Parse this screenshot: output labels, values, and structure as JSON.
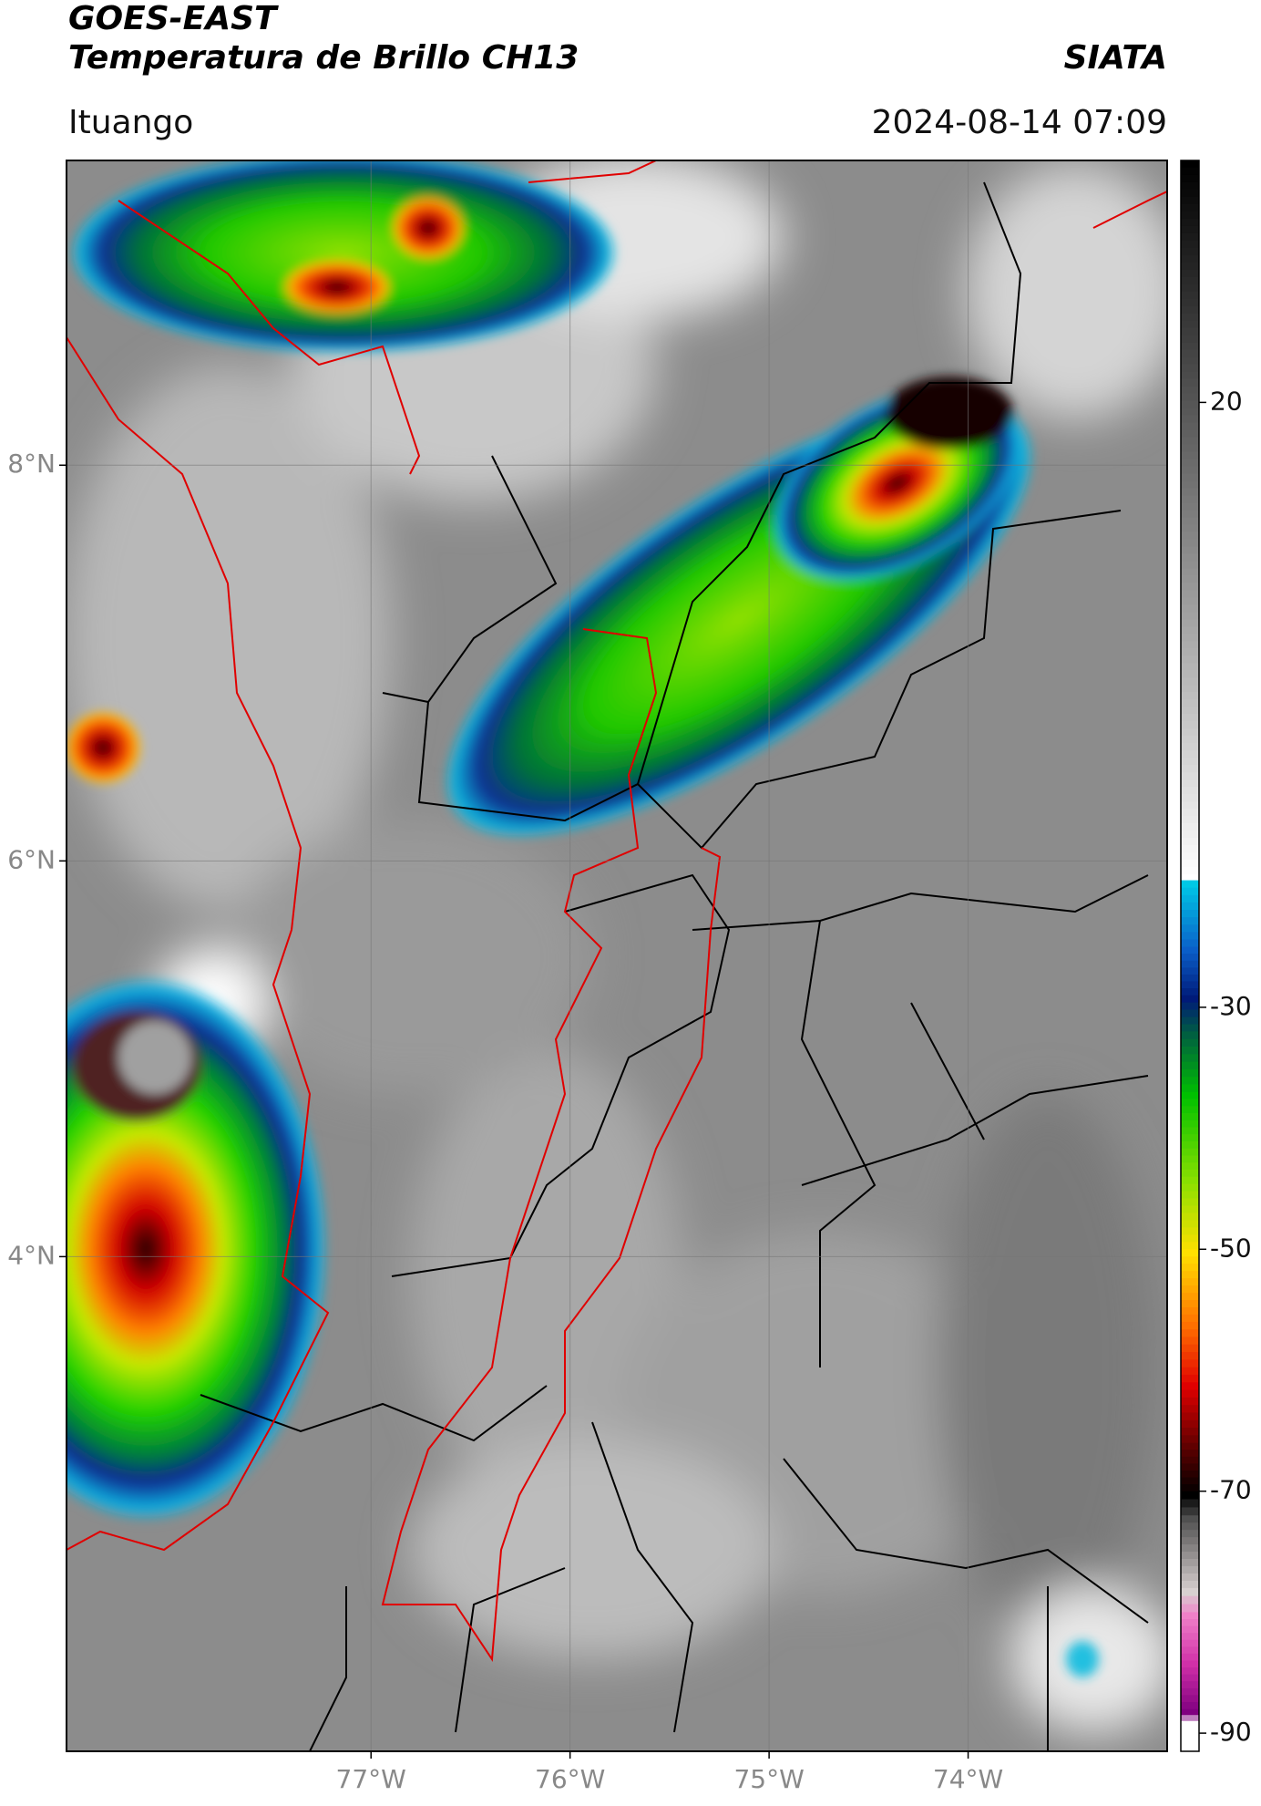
{
  "header": {
    "title": "GOES-EAST",
    "subtitle": "Temperatura de Brillo CH13",
    "brand": "SIATA",
    "location": "Ituango",
    "datetime": "2024-08-14 07:09"
  },
  "map": {
    "xlim": [
      -78.53,
      -73.0
    ],
    "ylim": [
      1.5,
      9.54
    ],
    "xticks": [
      {
        "value": -77,
        "label": "77°W"
      },
      {
        "value": -76,
        "label": "76°W"
      },
      {
        "value": -75,
        "label": "75°W"
      },
      {
        "value": -74,
        "label": "74°W"
      }
    ],
    "yticks": [
      {
        "value": 8,
        "label": "8°N"
      },
      {
        "value": 6,
        "label": "6°N"
      },
      {
        "value": 4,
        "label": "4°N"
      }
    ],
    "grid": true
  },
  "colorbar": {
    "lim": [
      -91.5,
      40
    ],
    "ticks": [
      20,
      -30,
      -50,
      -70,
      -90
    ],
    "stops": [
      [
        40,
        "#000000"
      ],
      [
        -19,
        "#ffffff"
      ],
      [
        -19.5,
        "#00c8e6"
      ],
      [
        -25,
        "#0a5ec8"
      ],
      [
        -29,
        "#001a78"
      ],
      [
        -32,
        "#006040"
      ],
      [
        -37,
        "#00c000"
      ],
      [
        -44,
        "#88e000"
      ],
      [
        -50,
        "#ffe000"
      ],
      [
        -56,
        "#ff7000"
      ],
      [
        -61,
        "#e00000"
      ],
      [
        -66,
        "#600000"
      ],
      [
        -70,
        "#000000"
      ],
      [
        -72,
        "#505050"
      ],
      [
        -78,
        "#d8d0d0"
      ],
      [
        -80,
        "#f080c8"
      ],
      [
        -84,
        "#d030a8"
      ],
      [
        -88,
        "#800080"
      ],
      [
        -89,
        "#ffffff"
      ],
      [
        -91.5,
        "#ffffff"
      ]
    ]
  }
}
